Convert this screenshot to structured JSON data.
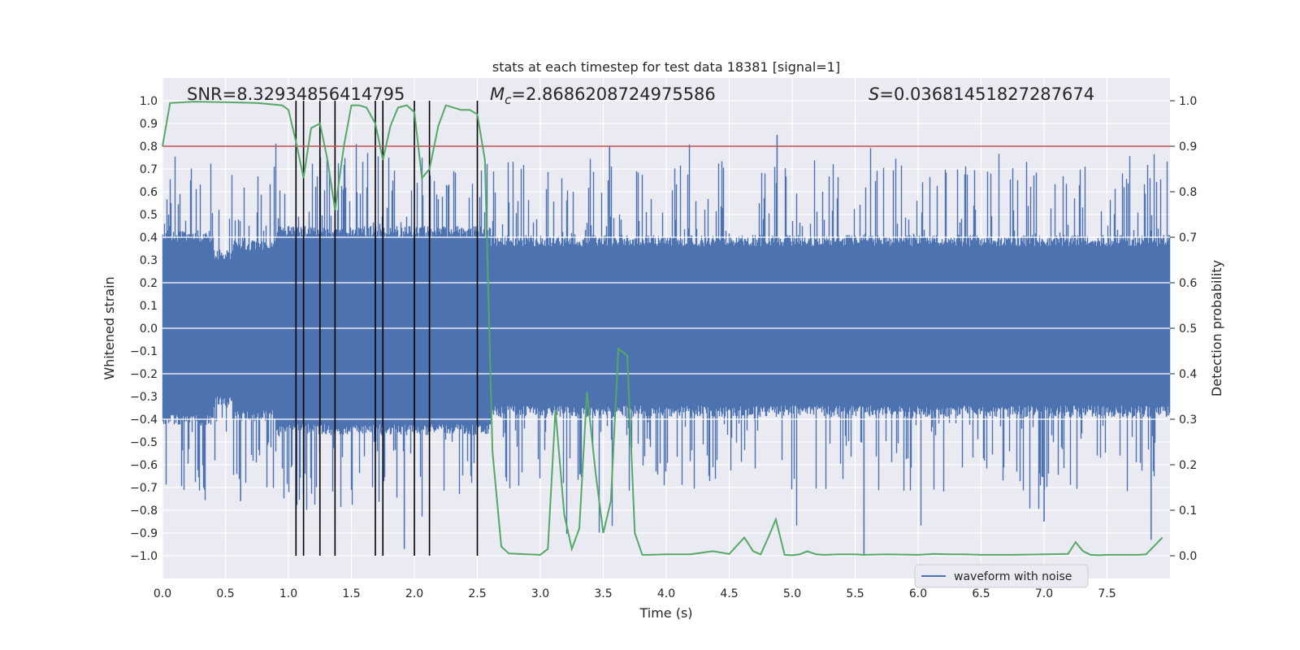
{
  "chart_data": {
    "type": "line",
    "title": "stats at each timestep for test data 18381 [signal=1]",
    "xlabel": "Time (s)",
    "ylabel": "Whitened strain",
    "y2label": "Detection probability",
    "xlim": [
      0.0,
      8.0
    ],
    "ylim": [
      -1.1,
      1.1
    ],
    "y2lim": [
      -0.05,
      1.05
    ],
    "xticks": [
      "0.0",
      "0.5",
      "1.0",
      "1.5",
      "2.0",
      "2.5",
      "3.0",
      "3.5",
      "4.0",
      "4.5",
      "5.0",
      "5.5",
      "6.0",
      "6.5",
      "7.0",
      "7.5"
    ],
    "yticks": [
      "1.0",
      "0.9",
      "0.8",
      "0.7",
      "0.6",
      "0.5",
      "0.4",
      "0.3",
      "0.2",
      "0.1",
      "0.0",
      "−0.1",
      "−0.2",
      "−0.3",
      "−0.4",
      "−0.5",
      "−0.6",
      "−0.7",
      "−0.8",
      "−0.9",
      "−1.0"
    ],
    "y2ticks": [
      "1.0",
      "0.9",
      "0.8",
      "0.7",
      "0.6",
      "0.5",
      "0.4",
      "0.3",
      "0.2",
      "0.1",
      "0.0"
    ],
    "stats": {
      "snr_label": "SNR=8.32934856414795",
      "mc_symbol": "M",
      "mc_subscript": "c",
      "mc_value": "=2.8686208724975586",
      "s_symbol": "S",
      "s_value": "=0.03681451827287674"
    },
    "threshold": 0.9,
    "event_lines_x": [
      1.06,
      1.12,
      1.25,
      1.37,
      1.69,
      1.75,
      2.0,
      2.12,
      2.5
    ],
    "legend": {
      "label": "waveform with noise",
      "placement": "lower-right"
    },
    "colors": {
      "waveform": "#4c72b0",
      "probability": "#55a868",
      "threshold": "#c44e52",
      "events": "#000000",
      "background": "#eaeaf2"
    },
    "series": [
      {
        "name": "waveform with noise",
        "kind": "envelope",
        "segments": [
          {
            "t": [
              0.0,
              0.4
            ],
            "upper": 0.38,
            "lower": -0.38
          },
          {
            "t": [
              0.4,
              0.55
            ],
            "upper": 0.3,
            "lower": -0.3
          },
          {
            "t": [
              0.55,
              0.9
            ],
            "upper": 0.34,
            "lower": -0.36
          },
          {
            "t": [
              0.9,
              2.6
            ],
            "upper": 0.4,
            "lower": -0.42
          },
          {
            "t": [
              2.6,
              8.0
            ],
            "upper": 0.36,
            "lower": -0.34
          }
        ],
        "peaks_max": [
          0.85,
          0.8,
          0.71,
          0.6
        ],
        "troughs_min": [
          -1.0,
          -0.97,
          -0.9,
          -0.85
        ]
      },
      {
        "name": "detection probability",
        "x": [
          0.0,
          0.06,
          0.25,
          0.5,
          0.75,
          0.95,
          1.0,
          1.06,
          1.12,
          1.18,
          1.25,
          1.31,
          1.37,
          1.44,
          1.5,
          1.56,
          1.62,
          1.69,
          1.75,
          1.81,
          1.87,
          1.94,
          2.0,
          2.06,
          2.12,
          2.19,
          2.25,
          2.31,
          2.37,
          2.44,
          2.5,
          2.56,
          2.62,
          2.69,
          2.75,
          2.9,
          3.0,
          3.06,
          3.12,
          3.19,
          3.25,
          3.31,
          3.37,
          3.44,
          3.5,
          3.56,
          3.62,
          3.69,
          3.75,
          3.81,
          3.87,
          4.0,
          4.19,
          4.37,
          4.5,
          4.62,
          4.69,
          4.75,
          4.81,
          4.87,
          4.94,
          5.0,
          5.06,
          5.12,
          5.19,
          5.25,
          5.37,
          5.5,
          5.56,
          5.75,
          6.0,
          6.12,
          6.25,
          6.37,
          6.5,
          6.75,
          7.0,
          7.19,
          7.25,
          7.31,
          7.37,
          7.44,
          7.5,
          7.75,
          7.81,
          7.87,
          7.94
        ],
        "y": [
          0.9,
          0.995,
          0.998,
          0.997,
          0.995,
          0.99,
          0.98,
          0.91,
          0.83,
          0.94,
          0.95,
          0.87,
          0.76,
          0.9,
          0.99,
          0.99,
          0.985,
          0.95,
          0.87,
          0.945,
          0.985,
          0.99,
          0.975,
          0.83,
          0.85,
          0.945,
          0.99,
          0.985,
          0.98,
          0.98,
          0.97,
          0.87,
          0.23,
          0.02,
          0.005,
          0.003,
          0.002,
          0.015,
          0.32,
          0.09,
          0.015,
          0.06,
          0.36,
          0.18,
          0.05,
          0.12,
          0.455,
          0.44,
          0.05,
          0.002,
          0.002,
          0.003,
          0.003,
          0.01,
          0.004,
          0.04,
          0.01,
          0.003,
          0.04,
          0.08,
          0.002,
          0.001,
          0.003,
          0.01,
          0.003,
          0.002,
          0.003,
          0.003,
          0.002,
          0.003,
          0.002,
          0.004,
          0.003,
          0.003,
          0.002,
          0.002,
          0.003,
          0.004,
          0.03,
          0.01,
          0.002,
          0.001,
          0.002,
          0.002,
          0.003,
          0.02,
          0.04
        ]
      }
    ]
  }
}
